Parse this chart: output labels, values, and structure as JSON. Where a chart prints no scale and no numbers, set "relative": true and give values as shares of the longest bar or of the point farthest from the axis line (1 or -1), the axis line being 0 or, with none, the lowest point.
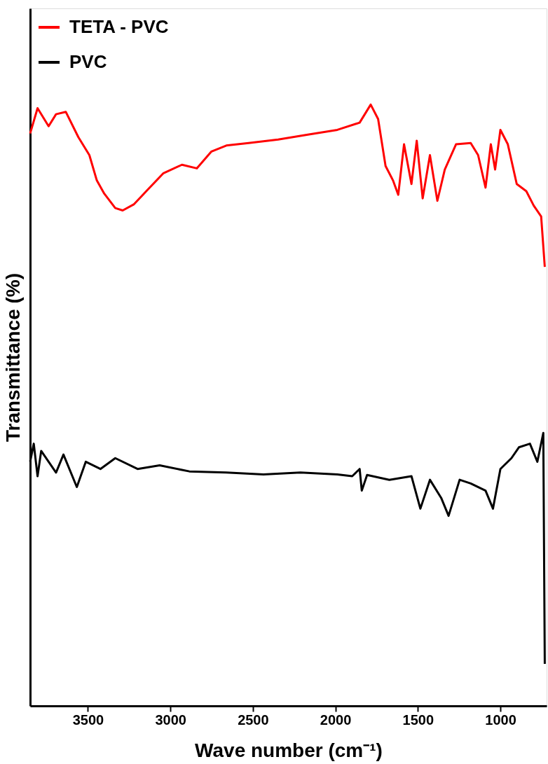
{
  "chart_data": {
    "type": "line",
    "xlabel": "Wave number (cm⁻¹)",
    "ylabel": "Transmittance (%)",
    "relative": true,
    "xlim": [
      3850,
      720
    ],
    "xticks": [
      3500,
      3000,
      2500,
      2000,
      1500,
      1000
    ],
    "grid": false,
    "legend": "top left",
    "line_style": "solid",
    "marker": "none",
    "series": [
      {
        "name": "TETA - PVC",
        "color": "#ff0000",
        "x": [
          3850,
          3805,
          3738,
          3693,
          3634,
          3558,
          3491,
          3446,
          3401,
          3334,
          3289,
          3222,
          3132,
          3042,
          2930,
          2840,
          2751,
          2661,
          2526,
          2347,
          2167,
          1988,
          1853,
          1786,
          1741,
          1696,
          1651,
          1619,
          1584,
          1539,
          1507,
          1471,
          1427,
          1382,
          1337,
          1269,
          1180,
          1135,
          1090,
          1058,
          1032,
          1000,
          955,
          901,
          843,
          798,
          753,
          731
        ],
        "values": [
          0.952,
          0.994,
          0.964,
          0.984,
          0.988,
          0.946,
          0.916,
          0.874,
          0.852,
          0.828,
          0.824,
          0.834,
          0.86,
          0.886,
          0.9,
          0.894,
          0.922,
          0.932,
          0.936,
          0.942,
          0.95,
          0.958,
          0.97,
          1.0,
          0.976,
          0.898,
          0.874,
          0.85,
          0.934,
          0.868,
          0.94,
          0.844,
          0.916,
          0.84,
          0.892,
          0.934,
          0.936,
          0.916,
          0.862,
          0.934,
          0.892,
          0.958,
          0.934,
          0.868,
          0.856,
          0.832,
          0.814,
          0.73
        ]
      },
      {
        "name": "PVC",
        "color": "#000000",
        "x": [
          3850,
          3828,
          3805,
          3783,
          3738,
          3693,
          3648,
          3567,
          3513,
          3424,
          3334,
          3199,
          3065,
          2885,
          2661,
          2436,
          2212,
          1988,
          1898,
          1853,
          1840,
          1808,
          1673,
          1539,
          1485,
          1427,
          1359,
          1314,
          1247,
          1180,
          1090,
          1045,
          1000,
          933,
          888,
          821,
          776,
          740,
          731
        ],
        "values": [
          0.406,
          0.436,
          0.382,
          0.424,
          0.406,
          0.388,
          0.418,
          0.364,
          0.406,
          0.394,
          0.412,
          0.394,
          0.4,
          0.39,
          0.388,
          0.385,
          0.388,
          0.385,
          0.382,
          0.394,
          0.358,
          0.384,
          0.376,
          0.382,
          0.328,
          0.376,
          0.346,
          0.316,
          0.376,
          0.37,
          0.358,
          0.328,
          0.394,
          0.412,
          0.43,
          0.436,
          0.406,
          0.454,
          0.07
        ]
      }
    ]
  }
}
